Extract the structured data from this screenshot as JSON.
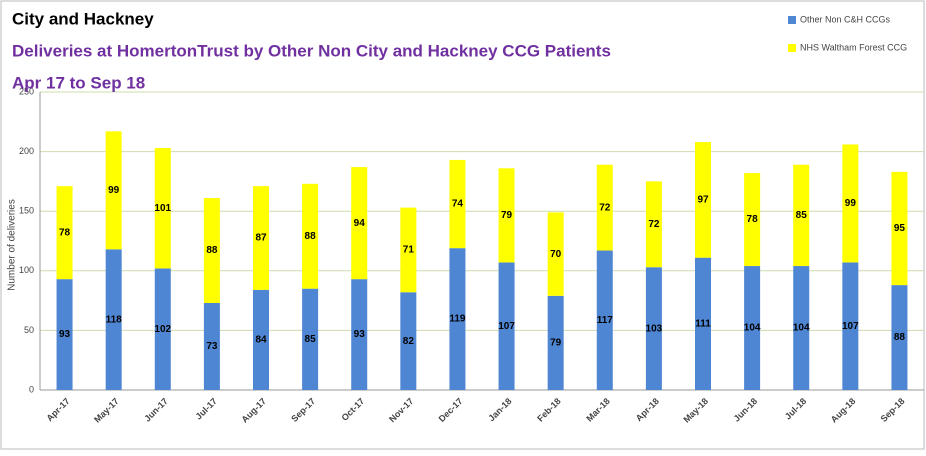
{
  "chart_data": {
    "type": "stacked_bar",
    "title": "City and Hackney",
    "subtitle": "Deliveries at HomertonTrust by Other Non City and Hackney CCG Patients",
    "period": "Apr 17 to Sep 18",
    "y_label": "Number of deliveries",
    "categories": [
      "Apr-17",
      "May-17",
      "Jun-17",
      "Jul-17",
      "Aug-17",
      "Sep-17",
      "Oct-17",
      "Nov-17",
      "Dec-17",
      "Jan-18",
      "Feb-18",
      "Mar-18",
      "Apr-18",
      "May-18",
      "Jun-18",
      "Jul-18",
      "Aug-18",
      "Sep-18"
    ],
    "series": [
      {
        "name": "Other Non C&H CCGs",
        "color": "#4f86d3",
        "values": [
          93,
          118,
          102,
          73,
          84,
          85,
          93,
          82,
          119,
          107,
          79,
          117,
          103,
          111,
          104,
          104,
          107,
          88
        ]
      },
      {
        "name": "NHS Waltham Forest CCG",
        "color": "#ffff00",
        "values": [
          78,
          99,
          101,
          88,
          87,
          88,
          94,
          71,
          74,
          79,
          70,
          72,
          72,
          97,
          78,
          85,
          99,
          95
        ]
      }
    ],
    "ylim": [
      0,
      250
    ],
    "yticks": [
      0,
      50,
      100,
      150,
      200,
      250
    ],
    "grid": true,
    "legend": "top-right"
  }
}
